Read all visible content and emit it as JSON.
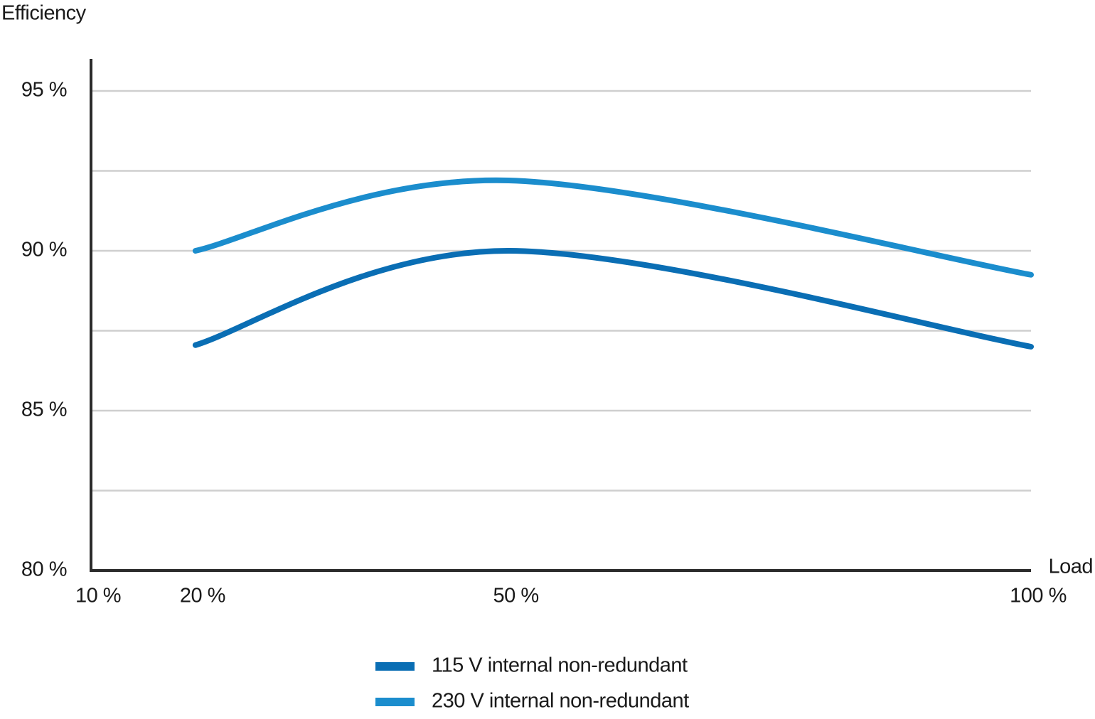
{
  "chart_data": {
    "type": "line",
    "y_label": "Efficiency",
    "x_label": "Load",
    "x": [
      20,
      50,
      100
    ],
    "series": [
      {
        "name": "115 V internal non-redundant",
        "color": "#0a6eb4",
        "values": [
          87.05,
          90,
          87
        ]
      },
      {
        "name": "230 V internal non-redundant",
        "color": "#1b8dcd",
        "values": [
          90,
          92.2,
          89.25
        ]
      }
    ],
    "xlim": [
      10,
      100
    ],
    "xticks": [
      {
        "value": 10,
        "label": "10 %"
      },
      {
        "value": 20,
        "label": "20 %"
      },
      {
        "value": 50,
        "label": "50 %"
      },
      {
        "value": 100,
        "label": "100 %"
      }
    ],
    "ylim": [
      80,
      96
    ],
    "yticks": [
      {
        "value": 80,
        "label": "80 %"
      },
      {
        "value": 82.5,
        "label": null
      },
      {
        "value": 85,
        "label": "85 %"
      },
      {
        "value": 87.5,
        "label": null
      },
      {
        "value": 90,
        "label": "90 %"
      },
      {
        "value": 92.5,
        "label": null
      },
      {
        "value": 95,
        "label": "95 %"
      }
    ],
    "grid": true
  }
}
